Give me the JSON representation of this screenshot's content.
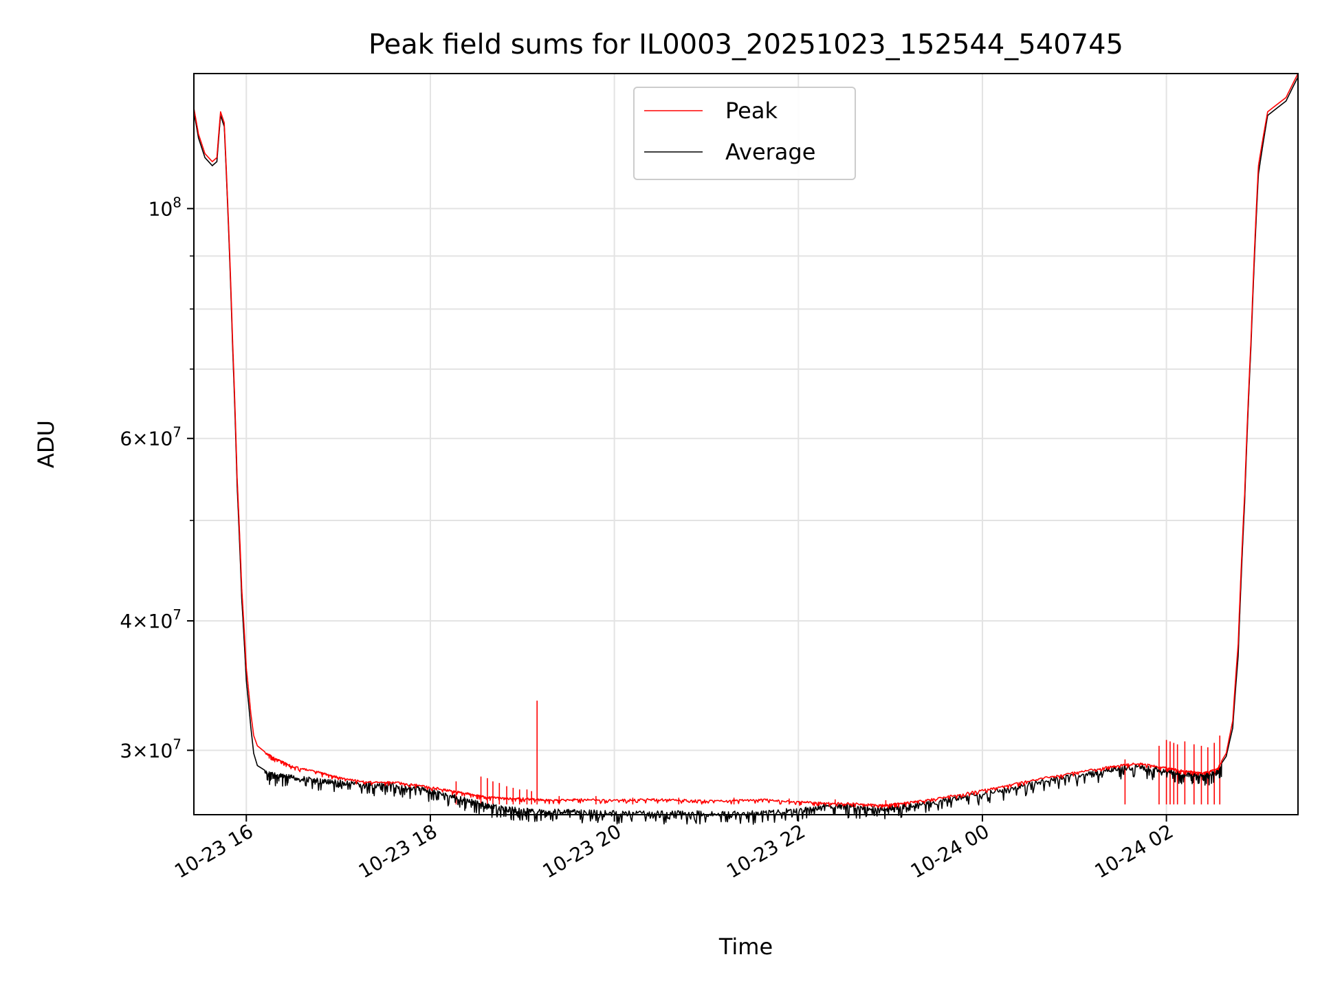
{
  "chart_data": {
    "type": "line",
    "title": "Peak field sums for IL0003_20251023_152544_540745",
    "xlabel": "Time",
    "ylabel": "ADU",
    "yscale": "log",
    "x_unit": "hours since 2025-10-23 00:00",
    "xlim": [
      15.43,
      27.43
    ],
    "ylim": [
      26000000,
      135000000
    ],
    "grid": true,
    "legend_loc": "upper center",
    "x_ticks": [
      {
        "value": 16,
        "label": "10-23 16"
      },
      {
        "value": 18,
        "label": "10-23 18"
      },
      {
        "value": 20,
        "label": "10-23 20"
      },
      {
        "value": 22,
        "label": "10-23 22"
      },
      {
        "value": 24,
        "label": "10-24 00"
      },
      {
        "value": 26,
        "label": "10-24 02"
      }
    ],
    "y_ticks": [
      {
        "value": 30000000,
        "base": "3",
        "exp": "7"
      },
      {
        "value": 40000000,
        "base": "4",
        "exp": "7"
      },
      {
        "value": 60000000,
        "base": "6",
        "exp": "7"
      },
      {
        "value": 100000000,
        "base": "",
        "exp": "8"
      }
    ],
    "y_minor_grid": [
      50000000,
      70000000,
      80000000,
      90000000
    ],
    "series": [
      {
        "name": "Peak",
        "color": "#ff0000",
        "x": [
          15.43,
          15.48,
          15.55,
          15.63,
          15.68,
          15.72,
          15.76,
          15.8,
          15.85,
          15.9,
          15.95,
          16.0,
          16.05,
          16.08,
          16.12,
          16.2,
          16.35,
          16.5,
          16.8,
          17.0,
          17.3,
          17.6,
          17.9,
          18.2,
          18.4,
          18.6,
          18.8,
          19.0,
          19.3,
          19.6,
          20.0,
          20.4,
          20.8,
          21.2,
          21.6,
          22.0,
          22.3,
          22.6,
          22.9,
          23.1,
          23.4,
          23.8,
          24.2,
          24.6,
          25.0,
          25.4,
          25.7,
          26.0,
          26.2,
          26.4,
          26.55,
          26.65,
          26.72,
          26.78,
          26.85,
          26.92,
          27.0,
          27.1,
          27.2,
          27.3,
          27.43
        ],
        "y": [
          125000000,
          118000000,
          113000000,
          111000000,
          112000000,
          124000000,
          121000000,
          100000000,
          75000000,
          55000000,
          43000000,
          36000000,
          32500000,
          31000000,
          30300000,
          29900000,
          29400000,
          29000000,
          28600000,
          28300000,
          28000000,
          28000000,
          27800000,
          27500000,
          27300000,
          27100000,
          27000000,
          27000000,
          26900000,
          26950000,
          26900000,
          26950000,
          26900000,
          26850000,
          26950000,
          26800000,
          26750000,
          26700000,
          26600000,
          26700000,
          26900000,
          27300000,
          27700000,
          28200000,
          28600000,
          29000000,
          29200000,
          28900000,
          28700000,
          28600000,
          28800000,
          29800000,
          32000000,
          38000000,
          53000000,
          75000000,
          110000000,
          124000000,
          126000000,
          128000000,
          135000000
        ]
      },
      {
        "name": "Average",
        "color": "#000000",
        "x": [
          15.43,
          15.48,
          15.55,
          15.63,
          15.68,
          15.72,
          15.76,
          15.8,
          15.85,
          15.9,
          15.95,
          16.0,
          16.05,
          16.08,
          16.12,
          16.2,
          16.35,
          16.5,
          16.8,
          17.0,
          17.3,
          17.6,
          17.9,
          18.2,
          18.4,
          18.6,
          18.8,
          19.0,
          19.3,
          19.6,
          20.0,
          20.4,
          20.8,
          21.2,
          21.6,
          22.0,
          22.3,
          22.6,
          22.9,
          23.1,
          23.4,
          23.8,
          24.2,
          24.6,
          25.0,
          25.4,
          25.7,
          26.0,
          26.2,
          26.4,
          26.55,
          26.65,
          26.72,
          26.78,
          26.85,
          26.92,
          27.0,
          27.1,
          27.2,
          27.3,
          27.43
        ],
        "y": [
          124000000,
          117000000,
          112000000,
          110000000,
          111000000,
          123000000,
          120000000,
          99000000,
          74000000,
          54000000,
          42000000,
          35000000,
          31500000,
          29800000,
          29000000,
          28700000,
          28500000,
          28400000,
          28200000,
          28100000,
          27900000,
          27900000,
          27700000,
          27300000,
          27000000,
          26700000,
          26500000,
          26400000,
          26350000,
          26300000,
          26250000,
          26250000,
          26250000,
          26200000,
          26250000,
          26400000,
          26650000,
          26600000,
          26500000,
          26600000,
          26800000,
          27200000,
          27600000,
          28100000,
          28500000,
          28900000,
          29100000,
          28800000,
          28600000,
          28500000,
          28700000,
          29600000,
          31500000,
          37000000,
          52000000,
          74000000,
          108000000,
          123000000,
          125000000,
          127000000,
          134000000
        ]
      }
    ],
    "peak_spikes": [
      {
        "x": 18.28,
        "y": 28000000
      },
      {
        "x": 18.55,
        "y": 28300000
      },
      {
        "x": 18.62,
        "y": 28200000
      },
      {
        "x": 18.68,
        "y": 28000000
      },
      {
        "x": 18.75,
        "y": 27900000
      },
      {
        "x": 18.83,
        "y": 27700000
      },
      {
        "x": 18.9,
        "y": 27600000
      },
      {
        "x": 18.97,
        "y": 27500000
      },
      {
        "x": 19.05,
        "y": 27500000
      },
      {
        "x": 19.1,
        "y": 27400000
      },
      {
        "x": 19.16,
        "y": 33500000
      },
      {
        "x": 19.4,
        "y": 27100000
      },
      {
        "x": 19.8,
        "y": 27100000
      },
      {
        "x": 20.2,
        "y": 27000000
      },
      {
        "x": 20.7,
        "y": 27000000
      },
      {
        "x": 21.3,
        "y": 27000000
      },
      {
        "x": 21.9,
        "y": 26950000
      },
      {
        "x": 22.4,
        "y": 26900000
      },
      {
        "x": 22.95,
        "y": 26850000
      },
      {
        "x": 25.55,
        "y": 29400000
      },
      {
        "x": 25.92,
        "y": 30300000
      },
      {
        "x": 26.0,
        "y": 30700000
      },
      {
        "x": 26.04,
        "y": 30600000
      },
      {
        "x": 26.08,
        "y": 30500000
      },
      {
        "x": 26.12,
        "y": 30400000
      },
      {
        "x": 26.2,
        "y": 30600000
      },
      {
        "x": 26.3,
        "y": 30400000
      },
      {
        "x": 26.38,
        "y": 30300000
      },
      {
        "x": 26.45,
        "y": 30200000
      },
      {
        "x": 26.52,
        "y": 30500000
      },
      {
        "x": 26.58,
        "y": 31000000
      }
    ]
  }
}
